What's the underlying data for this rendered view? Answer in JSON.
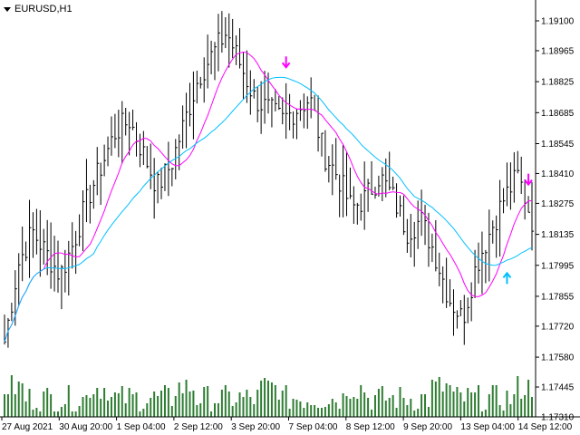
{
  "chart": {
    "symbol": "EURUSD,H1",
    "price_levels": [
      "1.19100",
      "1.18965",
      "1.18825",
      "1.18685",
      "1.18545",
      "1.18410",
      "1.18275",
      "1.18135",
      "1.17995",
      "1.17855",
      "1.17720",
      "1.17580",
      "1.17445",
      "1.17310"
    ],
    "time_labels": [
      "27 Aug 2021",
      "30 Aug 20:00",
      "1 Sep 04:00",
      "2 Sep 12:00",
      "3 Sep 20:00",
      "7 Sep 04:00",
      "8 Sep 12:00",
      "9 Sep 20:00",
      "13 Sep 04:00",
      "14 Sep 12:00"
    ],
    "colors": {
      "bars": "#000000",
      "fast_ma": "#ff00ff",
      "slow_ma": "#00bfff",
      "volume": "#2e7d32",
      "signal_sell": "#ff00ff",
      "signal_buy": "#00bfff"
    },
    "signals": [
      {
        "type": "sell",
        "icon": "arrow-down-icon",
        "bar_index": 79,
        "price": 1.1889
      },
      {
        "type": "sell",
        "icon": "arrow-down-icon",
        "bar_index": 147,
        "price": 1.1836
      },
      {
        "type": "buy",
        "icon": "arrow-up-icon",
        "bar_index": 141,
        "price": 1.1796
      }
    ]
  },
  "chart_data": {
    "type": "ohlc",
    "ylim": [
      1.1731,
      1.1917
    ],
    "x_tick_labels": [
      "27 Aug 2021",
      "30 Aug 20:00",
      "1 Sep 04:00",
      "2 Sep 12:00",
      "3 Sep 20:00",
      "7 Sep 04:00",
      "8 Sep 12:00",
      "9 Sep 20:00",
      "13 Sep 04:00",
      "14 Sep 12:00"
    ],
    "close_path": [
      1.1765,
      1.18,
      1.1815,
      1.1805,
      1.1795,
      1.181,
      1.183,
      1.1845,
      1.186,
      1.1865,
      1.185,
      1.1835,
      1.1845,
      1.1865,
      1.1885,
      1.1895,
      1.1905,
      1.189,
      1.1875,
      1.187,
      1.1865,
      1.187,
      1.1875,
      1.185,
      1.184,
      1.1825,
      1.183,
      1.184,
      1.183,
      1.1815,
      1.182,
      1.1805,
      1.1785,
      1.1775,
      1.18,
      1.1815,
      1.183,
      1.184,
      1.182
    ],
    "series": [
      {
        "name": "price",
        "kind": "hlc-bars"
      },
      {
        "kind": "line"
      },
      {
        "kind": "line"
      },
      {
        "kind": "histogram"
      }
    ]
  }
}
